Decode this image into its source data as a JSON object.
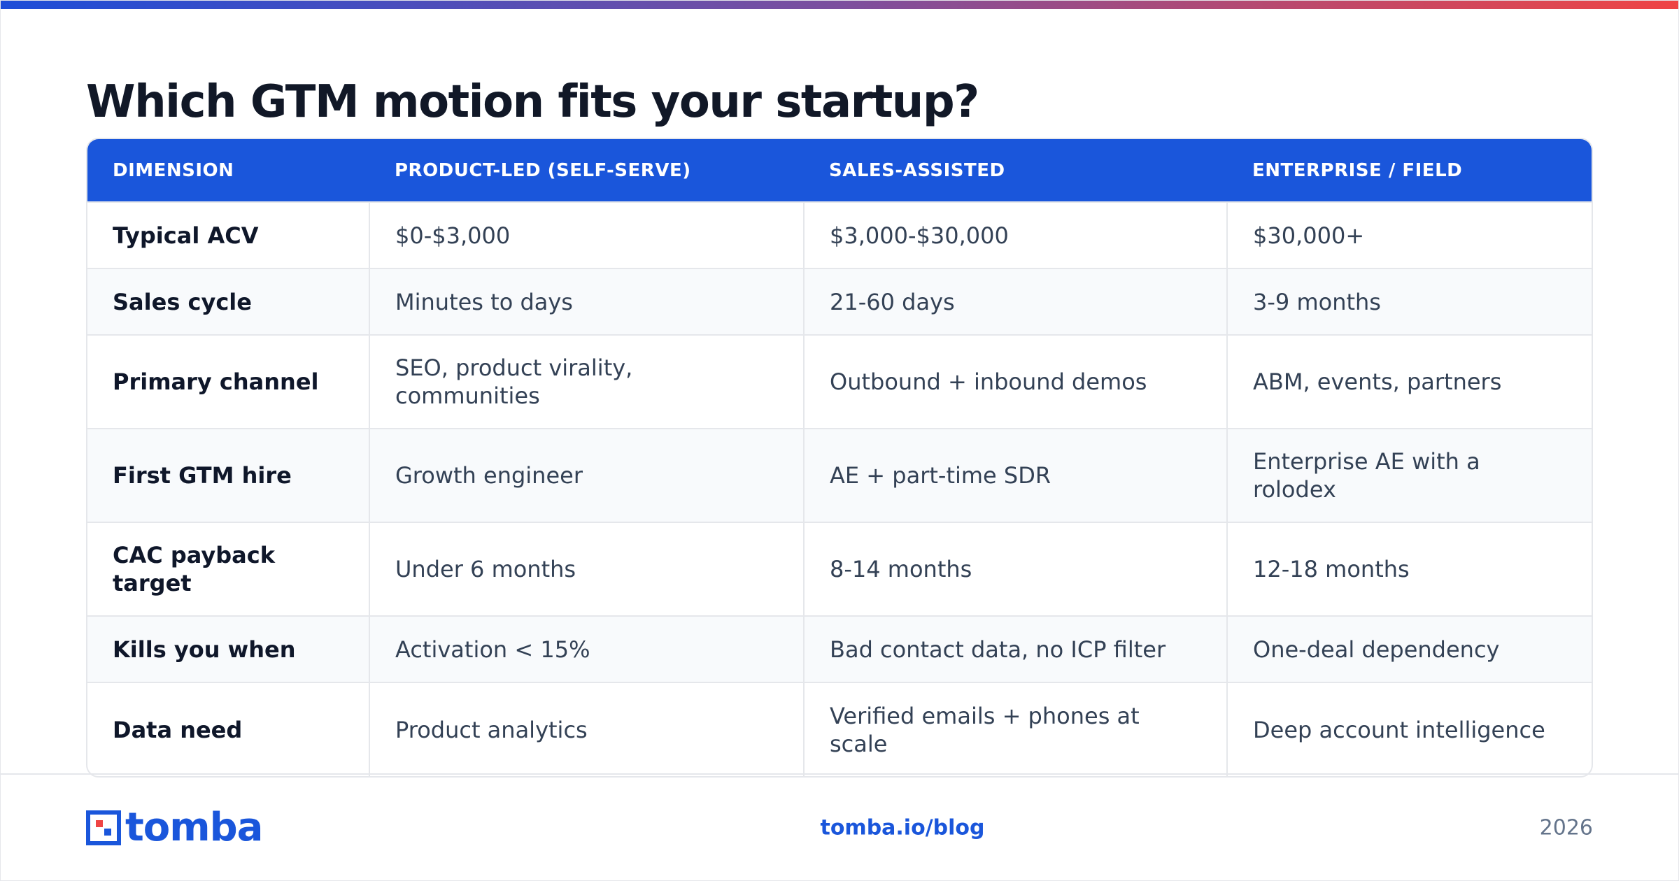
{
  "header": {
    "title": "Which GTM motion fits your startup?"
  },
  "table": {
    "columns": [
      "DIMENSION",
      "PRODUCT-LED (SELF-SERVE)",
      "SALES-ASSISTED",
      "ENTERPRISE / FIELD"
    ],
    "rows": [
      [
        "Typical ACV",
        "$0-$3,000",
        "$3,000-$30,000",
        "$30,000+"
      ],
      [
        "Sales cycle",
        "Minutes to days",
        "21-60 days",
        "3-9 months"
      ],
      [
        "Primary channel",
        "SEO, product virality, communities",
        "Outbound + inbound demos",
        "ABM, events, partners"
      ],
      [
        "First GTM hire",
        "Growth engineer",
        "AE + part-time SDR",
        "Enterprise AE with a rolodex"
      ],
      [
        "CAC payback target",
        "Under 6 months",
        "8-14 months",
        "12-18 months"
      ],
      [
        "Kills you when",
        "Activation < 15%",
        "Bad contact data, no ICP filter",
        "One-deal dependency"
      ],
      [
        "Data need",
        "Product analytics",
        "Verified emails + phones at scale",
        "Deep account intelligence"
      ]
    ]
  },
  "footer": {
    "brand": "tomba",
    "link": "tomba.io/blog",
    "year": "2026"
  }
}
